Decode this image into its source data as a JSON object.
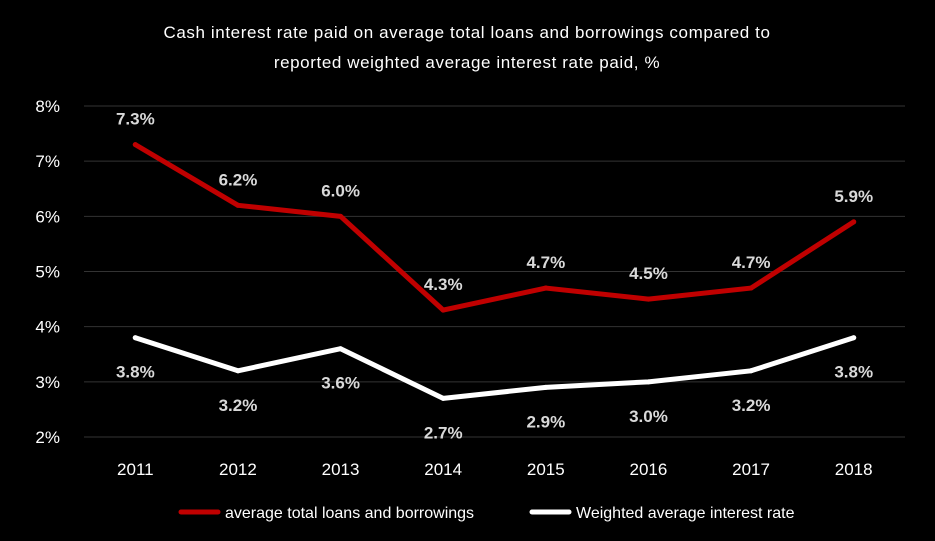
{
  "chart_data": {
    "type": "line",
    "title_lines": [
      "Cash interest rate paid on average total loans and borrowings compared to",
      "reported weighted average interest rate paid, %"
    ],
    "xlabel": "",
    "ylabel": "",
    "categories": [
      "2011",
      "2012",
      "2013",
      "2014",
      "2015",
      "2016",
      "2017",
      "2018"
    ],
    "ylim": [
      2,
      8
    ],
    "yticks": [
      "2%",
      "3%",
      "4%",
      "5%",
      "6%",
      "7%",
      "8%"
    ],
    "grid": true,
    "legend_position": "bottom",
    "series": [
      {
        "name": "average total loans and borrowings",
        "color": "#c00000",
        "values": [
          7.3,
          6.2,
          6.0,
          4.3,
          4.7,
          4.5,
          4.7,
          5.9
        ],
        "labels": [
          "7.3%",
          "6.2%",
          "6.0%",
          "4.3%",
          "4.7%",
          "4.5%",
          "4.7%",
          "5.9%"
        ]
      },
      {
        "name": "Weighted average interest rate",
        "color": "#ffffff",
        "values": [
          3.8,
          3.2,
          3.6,
          2.7,
          2.9,
          3.0,
          3.2,
          3.8
        ],
        "labels": [
          "3.8%",
          "3.2%",
          "3.6%",
          "2.7%",
          "2.9%",
          "3.0%",
          "3.2%",
          "3.8%"
        ]
      }
    ]
  }
}
